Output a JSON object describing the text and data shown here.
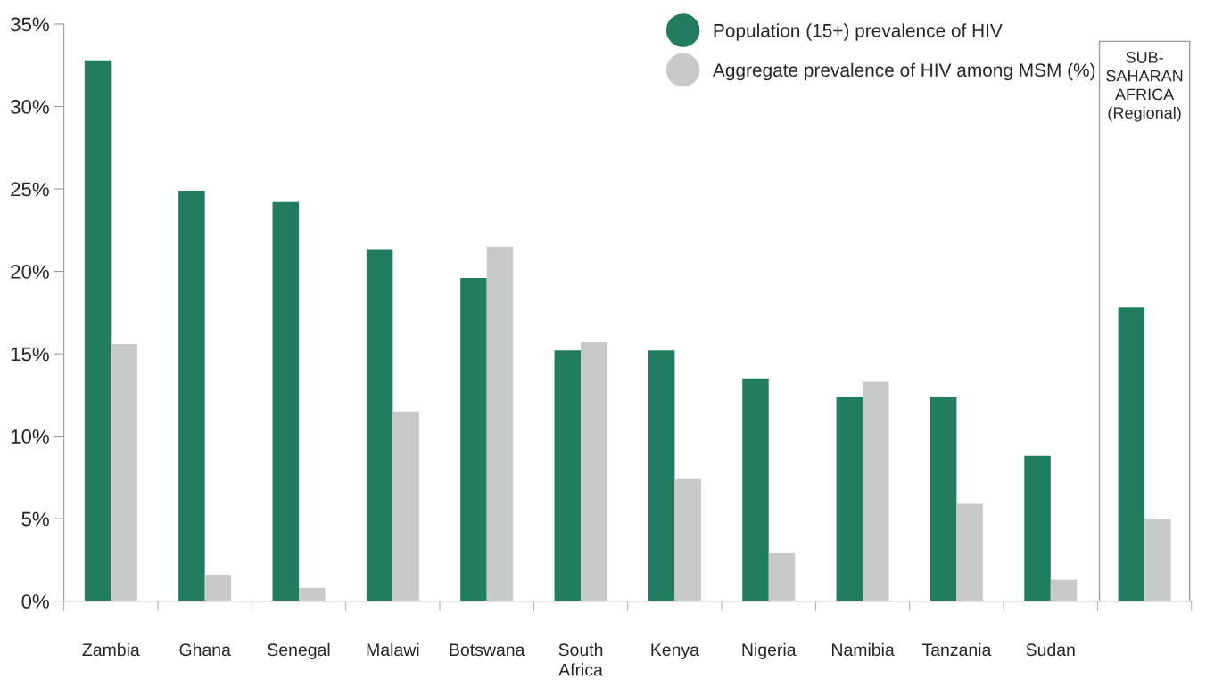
{
  "chart_data": {
    "type": "bar",
    "categories": [
      "Zambia",
      "Ghana",
      "Senegal",
      "Malawi",
      "Botswana",
      "South\nAfrica",
      "Kenya",
      "Nigeria",
      "Namibia",
      "Tanzania",
      "Sudan",
      null
    ],
    "series": [
      {
        "name": "Population (15+) prevalence of HIV",
        "color": "#217c62",
        "values": [
          32.8,
          24.9,
          24.2,
          21.3,
          19.6,
          15.2,
          15.2,
          13.5,
          12.4,
          12.4,
          8.8,
          17.8
        ]
      },
      {
        "name": "Aggregate prevalence of HIV among MSM (%)",
        "color": "#c8c9cb",
        "values": [
          15.6,
          1.6,
          0.8,
          11.5,
          21.5,
          15.7,
          7.4,
          2.9,
          13.3,
          5.9,
          1.3,
          5.0
        ]
      }
    ],
    "ylim": [
      0,
      35
    ],
    "yticks": [
      {
        "value": 0,
        "label": "0%"
      },
      {
        "value": 5,
        "label": "5%"
      },
      {
        "value": 10,
        "label": "10%"
      },
      {
        "value": 15,
        "label": "15%"
      },
      {
        "value": 20,
        "label": "20%"
      },
      {
        "value": 25,
        "label": "25%"
      },
      {
        "value": 30,
        "label": "30%"
      },
      {
        "value": 35,
        "label": "35%"
      }
    ],
    "annotations": [
      "SUB-\nSAHARAN\nAFRICA\n(Regional)"
    ],
    "legend": "top right",
    "grid": false,
    "marker": "circle"
  }
}
